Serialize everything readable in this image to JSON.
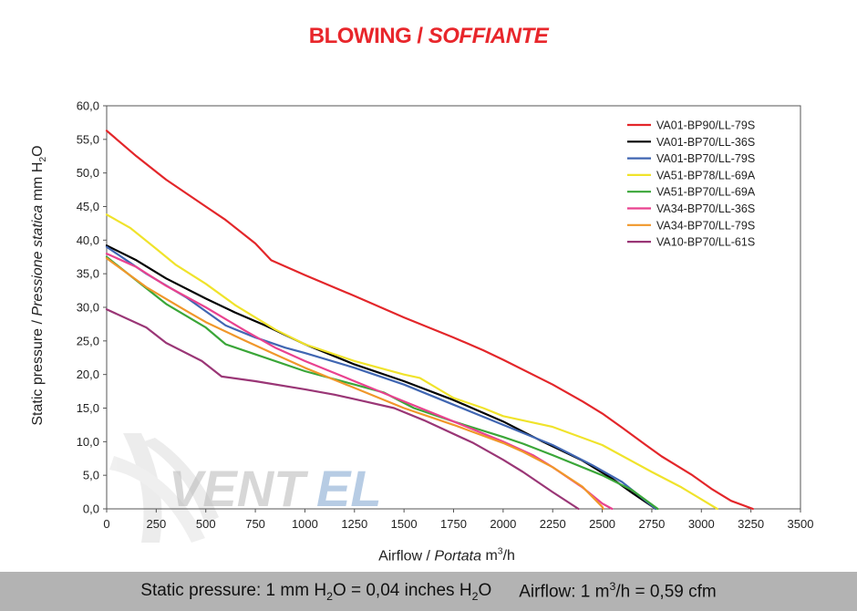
{
  "title": {
    "main": "BLOWING /",
    "italic": "SOFFIANTE",
    "color": "#e8262b"
  },
  "watermark": {
    "text": "VENTEL",
    "prefix": "VENT",
    "suffix": "EL"
  },
  "y_label": {
    "main": "Static pressure /",
    "italic": "Pressione statica",
    "unit_pre": "mm  H",
    "unit_sub": "2",
    "unit_post": "O"
  },
  "x_label": {
    "main": "Airflow /",
    "italic": "Portata",
    "unit_pre": "m",
    "unit_sup": "3",
    "unit_post": "/h"
  },
  "footer": {
    "pressure_pre": "Static pressure: 1 mm H",
    "pressure_sub1": "2",
    "pressure_mid": "O = 0,04 inches H",
    "pressure_sub2": "2",
    "pressure_post": "O",
    "airflow_pre": "Airflow: 1 m",
    "airflow_sup": "3",
    "airflow_post": "/h = 0,59 cfm"
  },
  "chart_data": {
    "type": "line",
    "xlim": [
      0,
      3500
    ],
    "ylim": [
      0,
      60
    ],
    "x_ticks": [
      "0",
      "250",
      "500",
      "750",
      "1000",
      "1250",
      "1500",
      "1750",
      "2000",
      "2250",
      "2500",
      "2750",
      "3000",
      "3250",
      "3500"
    ],
    "y_ticks": [
      "0,0",
      "5,0",
      "10,0",
      "15,0",
      "20,0",
      "25,0",
      "30,0",
      "35,0",
      "40,0",
      "45,0",
      "50,0",
      "55,0",
      "60,0"
    ],
    "grid": false,
    "legend_position": "top-right",
    "series": [
      {
        "name": "VA01-BP90/LL-79S",
        "color": "#e3262a",
        "points": [
          [
            0,
            56.3
          ],
          [
            150,
            52.5
          ],
          [
            300,
            49
          ],
          [
            500,
            45
          ],
          [
            600,
            43
          ],
          [
            750,
            39.5
          ],
          [
            830,
            37
          ],
          [
            1000,
            34.8
          ],
          [
            1250,
            31.7
          ],
          [
            1500,
            28.5
          ],
          [
            1750,
            25.5
          ],
          [
            1900,
            23.6
          ],
          [
            2000,
            22.2
          ],
          [
            2250,
            18.5
          ],
          [
            2400,
            16
          ],
          [
            2500,
            14.2
          ],
          [
            2600,
            12.1
          ],
          [
            2720,
            9.5
          ],
          [
            2800,
            7.8
          ],
          [
            2950,
            5.1
          ],
          [
            3050,
            3
          ],
          [
            3150,
            1.2
          ],
          [
            3260,
            0
          ]
        ]
      },
      {
        "name": "VA01-BP70/LL-36S",
        "color": "#000000",
        "points": [
          [
            0,
            39.2
          ],
          [
            150,
            37
          ],
          [
            300,
            34.3
          ],
          [
            500,
            31.3
          ],
          [
            650,
            29.2
          ],
          [
            800,
            27.3
          ],
          [
            1000,
            24.5
          ],
          [
            1250,
            21.5
          ],
          [
            1500,
            19
          ],
          [
            1750,
            16.2
          ],
          [
            2000,
            13
          ],
          [
            2200,
            10
          ],
          [
            2400,
            7.2
          ],
          [
            2550,
            4.5
          ],
          [
            2650,
            2.4
          ],
          [
            2770,
            0
          ]
        ]
      },
      {
        "name": "VA01-BP70/LL-79S",
        "color": "#4066b2",
        "points": [
          [
            0,
            39
          ],
          [
            200,
            35
          ],
          [
            400,
            31.5
          ],
          [
            600,
            27.3
          ],
          [
            750,
            25.5
          ],
          [
            900,
            24
          ],
          [
            1000,
            23.2
          ],
          [
            1250,
            21
          ],
          [
            1500,
            18.5
          ],
          [
            1750,
            15.5
          ],
          [
            2000,
            12.5
          ],
          [
            2250,
            9.5
          ],
          [
            2450,
            6.5
          ],
          [
            2600,
            4
          ],
          [
            2770,
            0
          ]
        ]
      },
      {
        "name": "VA51-BP78/LL-69A",
        "color": "#f0e32b",
        "points": [
          [
            0,
            43.8
          ],
          [
            120,
            41.8
          ],
          [
            250,
            38.7
          ],
          [
            350,
            36.3
          ],
          [
            500,
            33.5
          ],
          [
            650,
            30.3
          ],
          [
            850,
            26.7
          ],
          [
            1000,
            24.5
          ],
          [
            1250,
            22
          ],
          [
            1500,
            20
          ],
          [
            1580,
            19.5
          ],
          [
            1750,
            16.5
          ],
          [
            1900,
            15
          ],
          [
            2000,
            13.8
          ],
          [
            2250,
            12.2
          ],
          [
            2500,
            9.5
          ],
          [
            2750,
            5.5
          ],
          [
            2900,
            3.2
          ],
          [
            3080,
            0
          ]
        ]
      },
      {
        "name": "VA51-BP70/LL-69A",
        "color": "#3aa638",
        "points": [
          [
            0,
            37.5
          ],
          [
            150,
            34
          ],
          [
            300,
            30.5
          ],
          [
            500,
            27
          ],
          [
            600,
            24.5
          ],
          [
            750,
            23
          ],
          [
            1000,
            20.5
          ],
          [
            1250,
            18.5
          ],
          [
            1400,
            17.3
          ],
          [
            1550,
            15
          ],
          [
            1750,
            13
          ],
          [
            2000,
            10.7
          ],
          [
            2100,
            9.7
          ],
          [
            2250,
            8
          ],
          [
            2500,
            5
          ],
          [
            2650,
            2.8
          ],
          [
            2780,
            0
          ]
        ]
      },
      {
        "name": "VA34-BP70/LL-36S",
        "color": "#e9428f",
        "points": [
          [
            0,
            38
          ],
          [
            150,
            36
          ],
          [
            300,
            33.2
          ],
          [
            500,
            30
          ],
          [
            700,
            26.5
          ],
          [
            850,
            24
          ],
          [
            1000,
            22
          ],
          [
            1250,
            19
          ],
          [
            1500,
            16
          ],
          [
            1750,
            13
          ],
          [
            2000,
            10
          ],
          [
            2150,
            8
          ],
          [
            2250,
            6.2
          ],
          [
            2400,
            3.2
          ],
          [
            2500,
            0.8
          ],
          [
            2550,
            0
          ]
        ]
      },
      {
        "name": "VA34-BP70/LL-79S",
        "color": "#f0972a",
        "points": [
          [
            0,
            37.3
          ],
          [
            200,
            33
          ],
          [
            400,
            29.5
          ],
          [
            500,
            27.8
          ],
          [
            700,
            25
          ],
          [
            850,
            23
          ],
          [
            1000,
            21
          ],
          [
            1250,
            18
          ],
          [
            1500,
            15
          ],
          [
            1750,
            12.5
          ],
          [
            2000,
            9.8
          ],
          [
            2100,
            8.5
          ],
          [
            2250,
            6.2
          ],
          [
            2400,
            3.3
          ],
          [
            2500,
            0.3
          ],
          [
            2505,
            0
          ]
        ]
      },
      {
        "name": "VA10-BP70/LL-61S",
        "color": "#9a3676",
        "points": [
          [
            0,
            29.7
          ],
          [
            200,
            27
          ],
          [
            300,
            24.7
          ],
          [
            480,
            22
          ],
          [
            580,
            19.7
          ],
          [
            750,
            19
          ],
          [
            1000,
            17.8
          ],
          [
            1150,
            17
          ],
          [
            1300,
            16
          ],
          [
            1450,
            15
          ],
          [
            1600,
            13.2
          ],
          [
            1850,
            9.8
          ],
          [
            2000,
            7.3
          ],
          [
            2100,
            5.5
          ],
          [
            2250,
            2.5
          ],
          [
            2380,
            0
          ]
        ]
      }
    ]
  }
}
